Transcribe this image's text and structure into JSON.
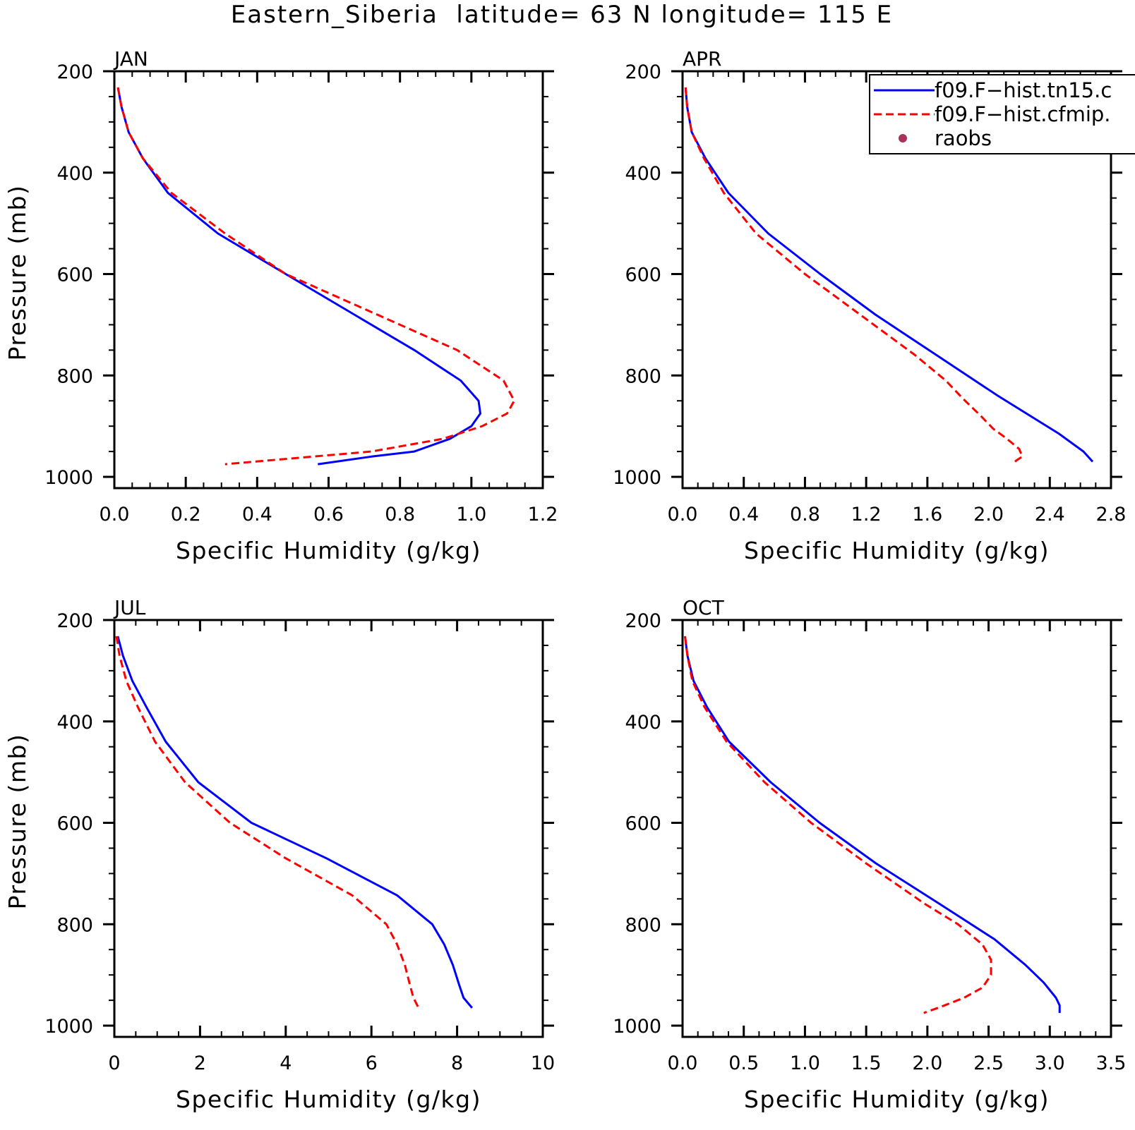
{
  "figure": {
    "title": "Eastern_Siberia  latitude= 63 N longitude= 115 E"
  },
  "colors": {
    "model_1": "#0000ff",
    "model_2": "#ff0000",
    "raobs": "#a8325a"
  },
  "legend": {
    "placement": "top-right of APR panel",
    "entries": [
      {
        "label": "f09.F−hist.tn15.c",
        "style": "solid",
        "color": "#0000ff"
      },
      {
        "label": "f09.F−hist.cfmip.",
        "style": "dashed",
        "color": "#ff0000"
      },
      {
        "label": "raobs",
        "style": "dot",
        "color": "#a8325a"
      }
    ]
  },
  "chart_data": [
    {
      "type": "line",
      "title": "JAN",
      "xlabel": "Specific Humidity (g/kg)",
      "ylabel": "Pressure (mb)",
      "xlim": [
        0,
        1.2
      ],
      "ylim": [
        200,
        1000
      ],
      "y_inverted": true,
      "xticks": [
        0.0,
        0.2,
        0.4,
        0.6,
        0.8,
        1.0,
        1.2
      ],
      "xtick_labels": [
        "0.0",
        "0.2",
        "0.4",
        "0.6",
        "0.8",
        "1.0",
        "1.2"
      ],
      "yticks": [
        200,
        400,
        600,
        800,
        1000
      ],
      "ytick_labels": [
        "200",
        "400",
        "600",
        "800",
        "1000"
      ],
      "series": [
        {
          "name": "f09.F−hist.tn15.c",
          "color": "#0000ff",
          "style": "solid",
          "x": [
            0.01,
            0.02,
            0.04,
            0.08,
            0.15,
            0.29,
            0.48,
            0.84,
            0.97,
            1.02,
            1.025,
            1.0,
            0.94,
            0.84,
            0.72,
            0.57
          ],
          "y": [
            232,
            270,
            320,
            372,
            440,
            520,
            600,
            750,
            810,
            850,
            875,
            900,
            925,
            950,
            960,
            975
          ]
        },
        {
          "name": "f09.F−hist.cfmip.",
          "color": "#ff0000",
          "style": "dashed",
          "x": [
            0.01,
            0.02,
            0.04,
            0.08,
            0.16,
            0.31,
            0.48,
            0.96,
            1.09,
            1.12,
            1.1,
            1.03,
            0.92,
            0.72,
            0.31
          ],
          "y": [
            232,
            270,
            320,
            372,
            440,
            520,
            600,
            750,
            810,
            850,
            875,
            900,
            925,
            950,
            975
          ]
        }
      ]
    },
    {
      "type": "line",
      "title": "APR",
      "xlabel": "Specific Humidity (g/kg)",
      "ylabel": "",
      "xlim": [
        0,
        2.8
      ],
      "ylim": [
        200,
        1000
      ],
      "y_inverted": true,
      "xticks": [
        0.0,
        0.4,
        0.8,
        1.2,
        1.6,
        2.0,
        2.4,
        2.8
      ],
      "xtick_labels": [
        "0.0",
        "0.4",
        "0.8",
        "1.2",
        "1.6",
        "2.0",
        "2.4",
        "2.8"
      ],
      "yticks": [
        200,
        400,
        600,
        800,
        1000
      ],
      "ytick_labels": [
        "200",
        "400",
        "600",
        "800",
        "1000"
      ],
      "series": [
        {
          "name": "f09.F−hist.tn15.c",
          "color": "#0000ff",
          "style": "solid",
          "x": [
            0.02,
            0.03,
            0.06,
            0.15,
            0.3,
            0.56,
            0.9,
            1.26,
            1.66,
            2.06,
            2.46,
            2.62,
            2.68
          ],
          "y": [
            232,
            270,
            320,
            372,
            440,
            520,
            600,
            680,
            760,
            840,
            915,
            950,
            970
          ]
        },
        {
          "name": "f09.F−hist.cfmip.",
          "color": "#ff0000",
          "style": "dashed",
          "x": [
            0.02,
            0.03,
            0.06,
            0.14,
            0.27,
            0.48,
            0.8,
            1.16,
            1.52,
            1.72,
            1.83,
            1.95,
            2.03,
            2.12,
            2.2,
            2.22,
            2.18,
            2.16
          ],
          "y": [
            232,
            270,
            320,
            372,
            440,
            520,
            600,
            680,
            760,
            810,
            845,
            880,
            905,
            925,
            945,
            960,
            968,
            975
          ]
        }
      ]
    },
    {
      "type": "line",
      "title": "JUL",
      "xlabel": "Specific Humidity (g/kg)",
      "ylabel": "Pressure (mb)",
      "xlim": [
        0,
        10
      ],
      "ylim": [
        200,
        1000
      ],
      "y_inverted": true,
      "xticks": [
        0,
        2,
        4,
        6,
        8,
        10
      ],
      "xtick_labels": [
        "0",
        "2",
        "4",
        "6",
        "8",
        "10"
      ],
      "yticks": [
        200,
        400,
        600,
        800,
        1000
      ],
      "ytick_labels": [
        "200",
        "400",
        "600",
        "800",
        "1000"
      ],
      "series": [
        {
          "name": "f09.F−hist.tn15.c",
          "color": "#0000ff",
          "style": "solid",
          "x": [
            0.08,
            0.2,
            0.42,
            0.75,
            1.2,
            1.96,
            3.2,
            4.95,
            6.6,
            7.42,
            7.7,
            7.9,
            8.05,
            8.15,
            8.35
          ],
          "y": [
            232,
            270,
            320,
            372,
            440,
            520,
            600,
            670,
            743,
            800,
            840,
            880,
            920,
            945,
            965
          ]
        },
        {
          "name": "f09.F−hist.cfmip.",
          "color": "#ff0000",
          "style": "dashed",
          "x": [
            0.05,
            0.12,
            0.28,
            0.55,
            0.95,
            1.65,
            2.7,
            4.0,
            5.55,
            6.35,
            6.6,
            6.78,
            6.9,
            6.98,
            7.1
          ],
          "y": [
            232,
            270,
            320,
            372,
            440,
            520,
            600,
            670,
            743,
            800,
            840,
            880,
            920,
            945,
            965
          ]
        }
      ]
    },
    {
      "type": "line",
      "title": "OCT",
      "xlabel": "Specific Humidity (g/kg)",
      "ylabel": "",
      "xlim": [
        0,
        3.5
      ],
      "ylim": [
        200,
        1000
      ],
      "y_inverted": true,
      "xticks": [
        0.0,
        0.5,
        1.0,
        1.5,
        2.0,
        2.5,
        3.0,
        3.5
      ],
      "xtick_labels": [
        "0.0",
        "0.5",
        "1.0",
        "1.5",
        "2.0",
        "2.5",
        "3.0",
        "3.5"
      ],
      "yticks": [
        200,
        400,
        600,
        800,
        1000
      ],
      "ytick_labels": [
        "200",
        "400",
        "600",
        "800",
        "1000"
      ],
      "series": [
        {
          "name": "f09.F−hist.tn15.c",
          "color": "#0000ff",
          "style": "solid",
          "x": [
            0.02,
            0.04,
            0.09,
            0.2,
            0.38,
            0.72,
            1.12,
            1.58,
            2.1,
            2.55,
            2.8,
            2.95,
            3.05,
            3.08,
            3.08
          ],
          "y": [
            232,
            270,
            320,
            372,
            440,
            520,
            600,
            680,
            760,
            830,
            880,
            915,
            945,
            960,
            975
          ]
        },
        {
          "name": "f09.F−hist.cfmip.",
          "color": "#ff0000",
          "style": "dashed",
          "x": [
            0.02,
            0.04,
            0.08,
            0.18,
            0.36,
            0.67,
            1.05,
            1.5,
            1.98,
            2.25,
            2.45,
            2.52,
            2.52,
            2.45,
            2.3,
            2.12,
            1.97
          ],
          "y": [
            232,
            270,
            320,
            372,
            440,
            520,
            600,
            680,
            760,
            800,
            840,
            870,
            900,
            925,
            945,
            962,
            975
          ]
        }
      ]
    }
  ]
}
